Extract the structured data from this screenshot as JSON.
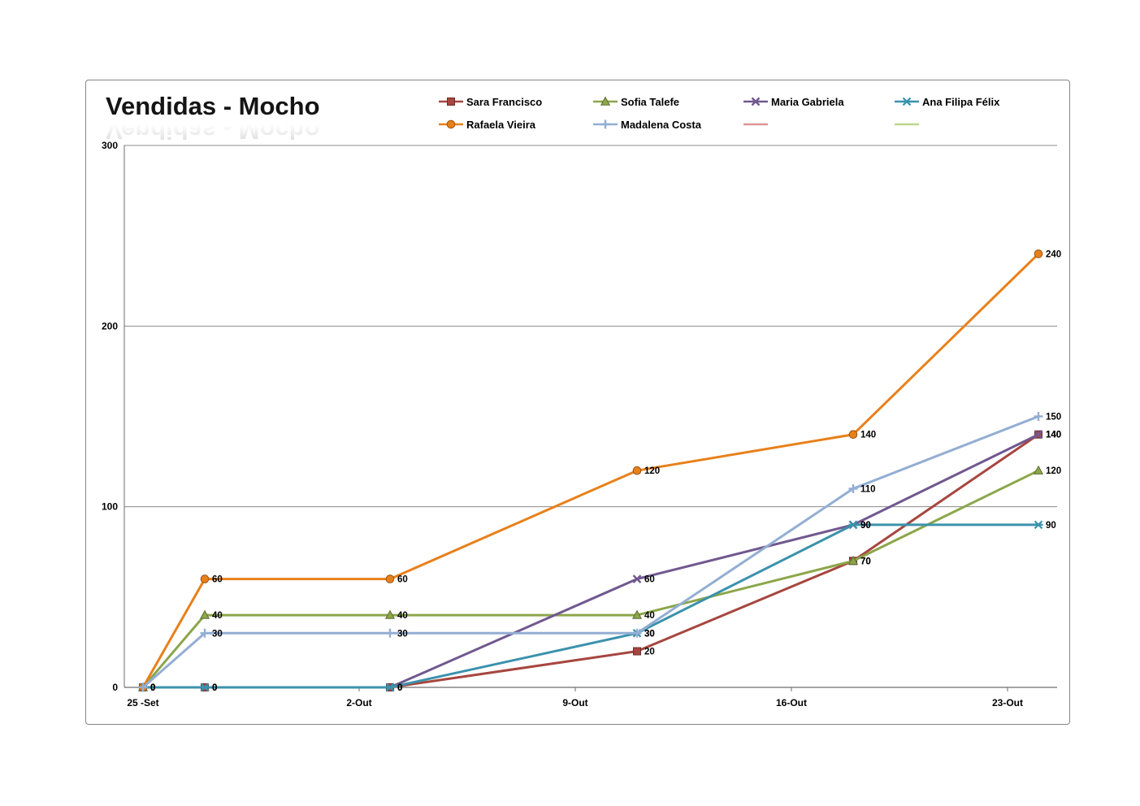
{
  "title": "Vendidas - Mocho",
  "colors": {
    "grid": "#8c8c8c",
    "axis": "#6e6e6e",
    "frame_border": "#858585",
    "label_text": "#000000"
  },
  "chart_data": {
    "type": "line",
    "title": "Vendidas - Mocho",
    "xlabel": "",
    "ylabel": "",
    "ylim": [
      0,
      300
    ],
    "y_ticks": [
      0,
      100,
      200,
      300
    ],
    "grid": true,
    "legend_position": "top",
    "x_tick_days": [
      0,
      7,
      14,
      21,
      28
    ],
    "x_tick_labels": [
      "25 -Set",
      "2-Out",
      "9-Out",
      "16-Out",
      "23-Out"
    ],
    "x_days": [
      0,
      2,
      8,
      16,
      23,
      29
    ],
    "data_labels": true,
    "series": [
      {
        "name": "Sara Francisco",
        "color": "#A6463F",
        "marker": "square",
        "values": [
          0,
          0,
          0,
          20,
          70,
          140
        ]
      },
      {
        "name": "Sofia Talefe",
        "color": "#8CA64A",
        "marker": "triangle",
        "values": [
          0,
          40,
          40,
          40,
          70,
          120
        ]
      },
      {
        "name": "Maria Gabriela",
        "color": "#71588F",
        "marker": "x",
        "values": [
          0,
          0,
          0,
          60,
          90,
          140
        ]
      },
      {
        "name": "Ana Filipa Félix",
        "color": "#3B92AC",
        "marker": "asterisk",
        "values": [
          0,
          0,
          0,
          30,
          90,
          90
        ]
      },
      {
        "name": "Rafaela Vieira",
        "color": "#E8801A",
        "marker": "circle",
        "values": [
          0,
          60,
          60,
          120,
          140,
          240
        ]
      },
      {
        "name": "Madalena Costa",
        "color": "#93AED3",
        "marker": "plus",
        "values": [
          0,
          30,
          30,
          30,
          110,
          150
        ]
      },
      {
        "name": "",
        "color": "#D99694",
        "marker": "none",
        "values": []
      },
      {
        "name": "",
        "color": "#BFD68E",
        "marker": "none",
        "values": []
      }
    ]
  }
}
